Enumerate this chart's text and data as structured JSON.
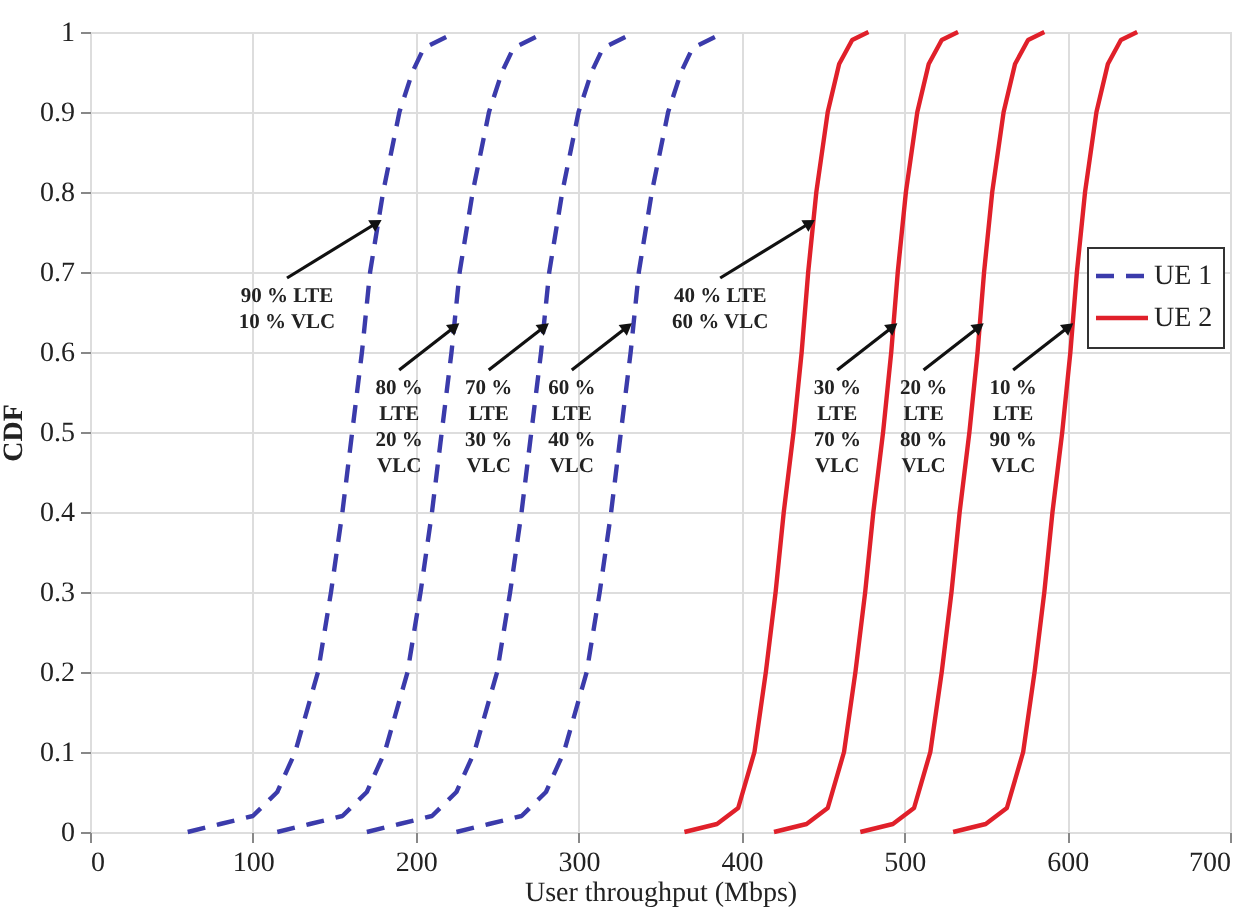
{
  "chart_data": {
    "type": "line",
    "xlabel": "User throughput (Mbps)",
    "ylabel": "CDF",
    "xlim": [
      0,
      700
    ],
    "ylim": [
      0,
      1
    ],
    "xticks": [
      0,
      100,
      200,
      300,
      400,
      500,
      600,
      700
    ],
    "yticks": [
      0,
      0.1,
      0.2,
      0.3,
      0.4,
      0.5,
      0.6,
      0.7,
      0.8,
      0.9,
      1
    ],
    "grid": true,
    "legend": "right",
    "marker": "none",
    "series": [
      {
        "name": "UE 1",
        "color": "#3b3bab",
        "line_style": "dashed",
        "x": [
          60,
          80,
          100,
          115,
          126,
          140,
          148,
          155,
          161,
          167,
          172,
          180,
          190,
          198,
          205,
          215,
          225
        ],
        "values": [
          0,
          0.01,
          0.02,
          0.05,
          0.1,
          0.2,
          0.3,
          0.4,
          0.5,
          0.6,
          0.7,
          0.8,
          0.9,
          0.95,
          0.98,
          0.99,
          1
        ]
      },
      {
        "color": "#3b3bab",
        "line_style": "dashed",
        "x": [
          115,
          135,
          155,
          170,
          181,
          195,
          203,
          210,
          216,
          222,
          227,
          235,
          245,
          253,
          260,
          270,
          280
        ],
        "values": [
          0,
          0.01,
          0.02,
          0.05,
          0.1,
          0.2,
          0.3,
          0.4,
          0.5,
          0.6,
          0.7,
          0.8,
          0.9,
          0.95,
          0.98,
          0.99,
          1
        ]
      },
      {
        "color": "#3b3bab",
        "line_style": "dashed",
        "x": [
          170,
          190,
          210,
          225,
          236,
          250,
          258,
          265,
          271,
          277,
          282,
          290,
          300,
          308,
          315,
          325,
          335
        ],
        "values": [
          0,
          0.01,
          0.02,
          0.05,
          0.1,
          0.2,
          0.3,
          0.4,
          0.5,
          0.6,
          0.7,
          0.8,
          0.9,
          0.95,
          0.98,
          0.99,
          1
        ]
      },
      {
        "color": "#3b3bab",
        "line_style": "dashed",
        "x": [
          225,
          245,
          265,
          280,
          291,
          305,
          313,
          320,
          326,
          332,
          337,
          345,
          355,
          363,
          370,
          380,
          390
        ],
        "values": [
          0,
          0.01,
          0.02,
          0.05,
          0.1,
          0.2,
          0.3,
          0.4,
          0.5,
          0.6,
          0.7,
          0.8,
          0.9,
          0.95,
          0.98,
          0.99,
          1
        ]
      },
      {
        "name": "UE 2",
        "color": "#e0202a",
        "line_style": "solid",
        "x": [
          365,
          385,
          398,
          408,
          415,
          421,
          426,
          432,
          437,
          441,
          446,
          453,
          460,
          468,
          478
        ],
        "values": [
          0,
          0.01,
          0.03,
          0.1,
          0.2,
          0.3,
          0.4,
          0.5,
          0.6,
          0.7,
          0.8,
          0.9,
          0.96,
          0.99,
          1
        ]
      },
      {
        "color": "#e0202a",
        "line_style": "solid",
        "x": [
          420,
          440,
          453,
          463,
          470,
          476,
          481,
          487,
          492,
          496,
          501,
          508,
          515,
          523,
          533
        ],
        "values": [
          0,
          0.01,
          0.03,
          0.1,
          0.2,
          0.3,
          0.4,
          0.5,
          0.6,
          0.7,
          0.8,
          0.9,
          0.96,
          0.99,
          1
        ]
      },
      {
        "color": "#e0202a",
        "line_style": "solid",
        "x": [
          473,
          493,
          506,
          516,
          523,
          529,
          534,
          540,
          545,
          549,
          554,
          561,
          568,
          576,
          586
        ],
        "values": [
          0,
          0.01,
          0.03,
          0.1,
          0.2,
          0.3,
          0.4,
          0.5,
          0.6,
          0.7,
          0.8,
          0.9,
          0.96,
          0.99,
          1
        ]
      },
      {
        "color": "#e0202a",
        "line_style": "solid",
        "x": [
          530,
          550,
          563,
          573,
          580,
          586,
          591,
          597,
          602,
          606,
          611,
          618,
          625,
          633,
          643
        ],
        "values": [
          0,
          0.01,
          0.03,
          0.1,
          0.2,
          0.3,
          0.4,
          0.5,
          0.6,
          0.7,
          0.8,
          0.9,
          0.96,
          0.99,
          1
        ]
      }
    ],
    "annotations": [
      {
        "text": "90 % LTE\n10 % VLC",
        "x": 175,
        "y": 0.76
      },
      {
        "text": "80 %\nLTE\n20 %\nVLC",
        "x": 223,
        "y": 0.63
      },
      {
        "text": "70 %\nLTE\n30 %\nVLC",
        "x": 278,
        "y": 0.63
      },
      {
        "text": "60 %\nLTE\n40 %\nVLC",
        "x": 329,
        "y": 0.63
      },
      {
        "text": "40 % LTE\n60 % VLC",
        "x": 441,
        "y": 0.76
      },
      {
        "text": "30 %\nLTE\n70 %\nVLC",
        "x": 492,
        "y": 0.63
      },
      {
        "text": "20 %\nLTE\n80 %\nVLC",
        "x": 545,
        "y": 0.63
      },
      {
        "text": "10 %\nLTE\n90 %\nVLC",
        "x": 600,
        "y": 0.63
      }
    ]
  }
}
